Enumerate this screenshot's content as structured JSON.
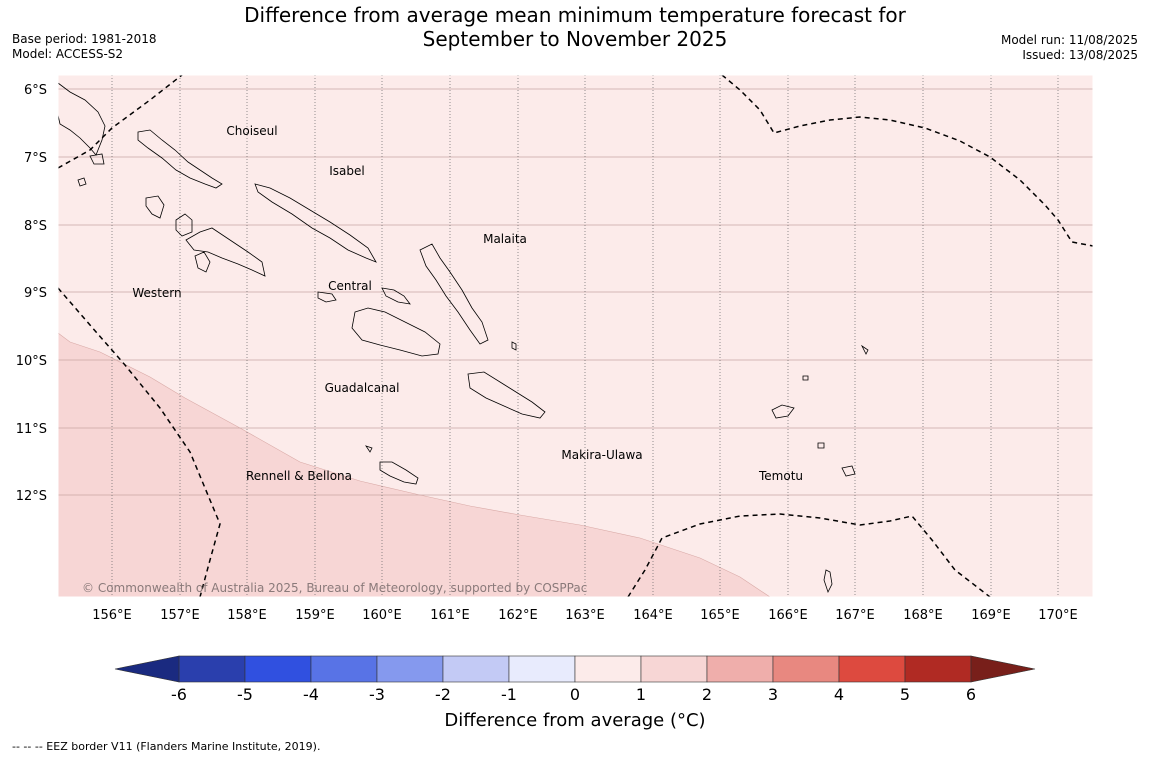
{
  "title": {
    "line1": "Difference from average mean minimum temperature forecast for",
    "line2": "September to November 2025"
  },
  "meta_left": [
    "Base period: 1981-2018",
    "Model: ACCESS-S2"
  ],
  "meta_right": [
    "Model run: 11/08/2025",
    "Issued: 13/08/2025"
  ],
  "map": {
    "lat_labels": [
      "6°S",
      "7°S",
      "8°S",
      "9°S",
      "10°S",
      "11°S",
      "12°S"
    ],
    "lon_labels": [
      "156°E",
      "157°E",
      "158°E",
      "159°E",
      "160°E",
      "161°E",
      "162°E",
      "163°E",
      "164°E",
      "165°E",
      "166°E",
      "167°E",
      "168°E",
      "169°E",
      "170°E"
    ],
    "region_labels": [
      "Choiseul",
      "Isabel",
      "Malaita",
      "Western",
      "Central",
      "Guadalcanal",
      "Makira-Ulawa",
      "Rennell & Bellona",
      "Temotu"
    ],
    "copyright": "© Commonwealth of Australia 2025, Bureau of Meteorology, supported by COSPPac"
  },
  "colorbar": {
    "title": "Difference from average (°C)",
    "ticks": [
      "-6",
      "-5",
      "-4",
      "-3",
      "-2",
      "-1",
      "0",
      "1",
      "2",
      "3",
      "4",
      "5",
      "6"
    ],
    "colors": [
      "#2a3fad",
      "#3050e0",
      "#5873e6",
      "#8599ee",
      "#c3caf5",
      "#e8ebfd",
      "#fcebea",
      "#f7d6d5",
      "#efaeab",
      "#e88880",
      "#dd4a3f",
      "#b02a23"
    ],
    "under_color": "#1a2a80",
    "over_color": "#781f1a"
  },
  "footer": "--  --  -- EEZ border V11 (Flanders Marine Institute, 2019)."
}
